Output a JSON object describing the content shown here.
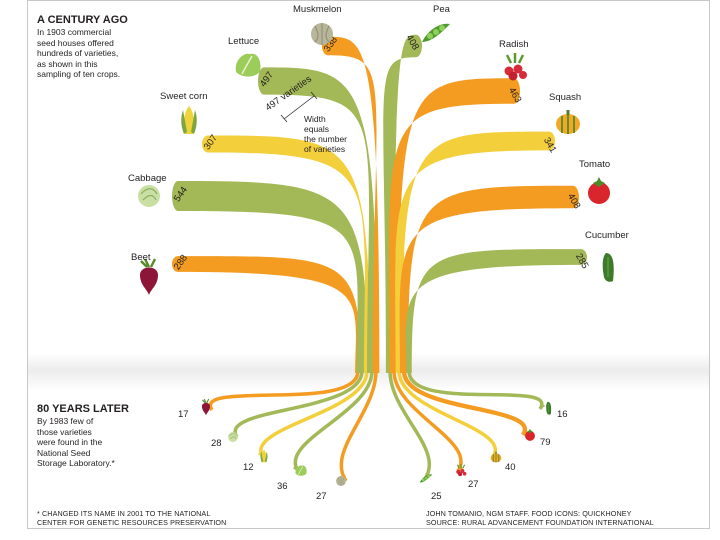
{
  "intro": {
    "heading": "A CENTURY AGO",
    "lines": [
      "In 1903 commercial",
      "seed houses offered",
      "hundreds of varieties,",
      "as shown in this",
      "sampling of ten crops."
    ]
  },
  "later": {
    "heading": "80 YEARS LATER",
    "lines": [
      "By 1983 few of",
      "those varieties",
      "were found in the",
      "National Seed",
      "Storage Laboratory.*"
    ]
  },
  "legend_note": {
    "lines": [
      "Width",
      "equals",
      "the number",
      "of varieties"
    ]
  },
  "varieties_word": "varieties",
  "footnote": [
    "* CHANGED ITS NAME IN 2001 TO THE NATIONAL",
    "CENTER FOR GENETIC RESOURCES PRESERVATION"
  ],
  "credit": [
    "JOHN TOMANIO, NGM STAFF. FOOD ICONS: QUICKHONEY",
    "SOURCE: RURAL ADVANCEMENT FOUNDATION INTERNATIONAL"
  ],
  "colors": {
    "green": "#a3b857",
    "orange": "#f39c21",
    "yellow": "#f3cf3b",
    "text": "#231f20"
  },
  "chart_data": {
    "type": "flow",
    "title": "A century ago vs. 80 years later",
    "units": "number of varieties",
    "series": [
      {
        "name": "1903",
        "label": "Commercial seed houses, 1903"
      },
      {
        "name": "1983",
        "label": "National Seed Storage Laboratory, 1983"
      }
    ],
    "crops": [
      {
        "name": "Beet",
        "v1903": 288,
        "v1983": 17,
        "color": "orange",
        "icon": "beet-icon"
      },
      {
        "name": "Cabbage",
        "v1903": 544,
        "v1983": 28,
        "color": "green",
        "icon": "cabbage-icon"
      },
      {
        "name": "Sweet corn",
        "v1903": 307,
        "v1983": 12,
        "color": "yellow",
        "icon": "corn-icon"
      },
      {
        "name": "Lettuce",
        "v1903": 497,
        "v1983": 36,
        "color": "green",
        "icon": "lettuce-icon"
      },
      {
        "name": "Muskmelon",
        "v1903": 338,
        "v1983": 27,
        "color": "orange",
        "icon": "muskmelon-icon"
      },
      {
        "name": "Pea",
        "v1903": 408,
        "v1983": 25,
        "color": "green",
        "icon": "pea-icon"
      },
      {
        "name": "Radish",
        "v1903": 463,
        "v1983": 27,
        "color": "orange",
        "icon": "radish-icon"
      },
      {
        "name": "Squash",
        "v1903": 341,
        "v1983": 40,
        "color": "yellow",
        "icon": "squash-icon"
      },
      {
        "name": "Tomato",
        "v1903": 408,
        "v1983": 79,
        "color": "orange",
        "icon": "tomato-icon"
      },
      {
        "name": "Cucumber",
        "v1903": 285,
        "v1983": 16,
        "color": "green",
        "icon": "cucumber-icon"
      }
    ]
  }
}
